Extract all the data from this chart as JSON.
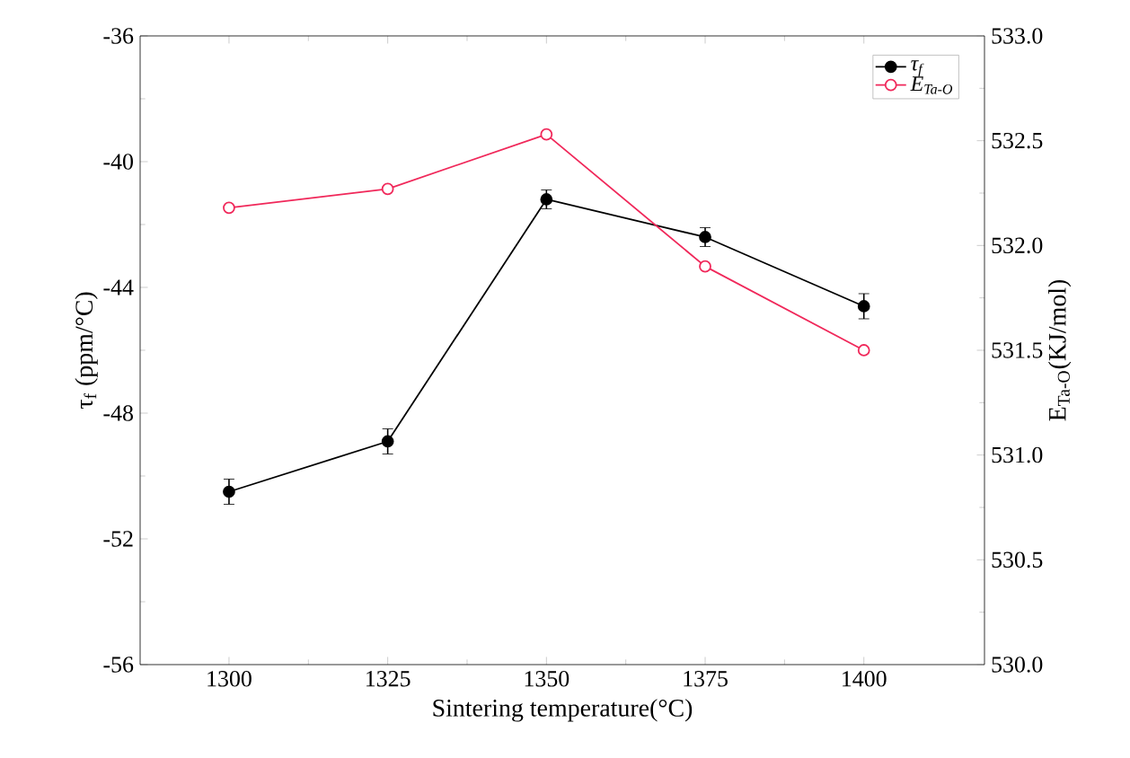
{
  "chart_data": {
    "type": "line",
    "xlabel": "Sintering temperature(°C)",
    "ylabel": "τ$_{f}$ (ppm/°C)",
    "y2label": "E$_{Ta-O}$(KJ/mol)",
    "x": [
      1300,
      1325,
      1350,
      1375,
      1400
    ],
    "series": [
      {
        "name": "τ$_{f}$",
        "color": "#000000",
        "values": [
          -50.5,
          -48.9,
          -41.2,
          -42.4,
          -44.6
        ],
        "errors": [
          0.4,
          0.4,
          0.3,
          0.3,
          0.4
        ]
      },
      {
        "name": "E$_{Ta-O}$",
        "color": "#f0285a",
        "axis": "y2",
        "values": [
          532.18,
          532.27,
          532.53,
          531.9,
          531.5
        ]
      }
    ],
    "xlim": [
      1286,
      1419
    ],
    "xticks": [
      1300,
      1325,
      1350,
      1375,
      1400
    ],
    "ylim": [
      -56,
      -36
    ],
    "yticks": [
      -56,
      -52,
      -48,
      -44,
      -40,
      -36
    ],
    "y2lim": [
      530,
      533
    ],
    "y2ticks": [
      {
        "value": 530,
        "label": "530.0"
      },
      {
        "value": 530.5,
        "label": "530.5"
      },
      {
        "value": 531,
        "label": "531.0"
      },
      {
        "value": 531.5,
        "label": "531.5"
      },
      {
        "value": 532,
        "label": "532.0"
      },
      {
        "value": 532.5,
        "label": "532.5"
      },
      {
        "value": 533,
        "label": "533.0"
      }
    ],
    "legend": "top right",
    "marker": "circle",
    "line_style": "solid",
    "grid": false
  }
}
